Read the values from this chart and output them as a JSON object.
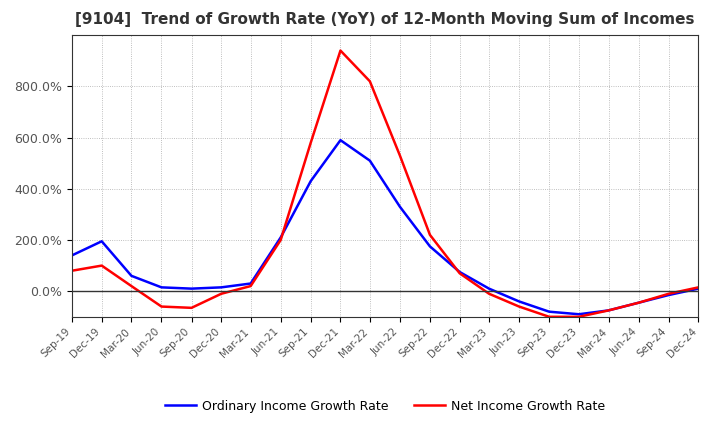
{
  "title": "[9104]  Trend of Growth Rate (YoY) of 12-Month Moving Sum of Incomes",
  "title_fontsize": 11,
  "background_color": "#ffffff",
  "grid_color": "#aaaaaa",
  "ylim": [
    -100,
    1000
  ],
  "yticks": [
    0,
    200,
    400,
    600,
    800
  ],
  "ytick_labels": [
    "0.0%",
    "200.0%",
    "400.0%",
    "600.0%",
    "800.0%"
  ],
  "legend_labels": [
    "Ordinary Income Growth Rate",
    "Net Income Growth Rate"
  ],
  "legend_colors": [
    "#0000ff",
    "#ff0000"
  ],
  "dates": [
    "Sep-19",
    "Dec-19",
    "Mar-20",
    "Jun-20",
    "Sep-20",
    "Dec-20",
    "Mar-21",
    "Jun-21",
    "Sep-21",
    "Dec-21",
    "Mar-22",
    "Jun-22",
    "Sep-22",
    "Dec-22",
    "Mar-23",
    "Jun-23",
    "Sep-23",
    "Dec-23",
    "Mar-24",
    "Jun-24",
    "Sep-24",
    "Dec-24"
  ],
  "ordinary_income": [
    140,
    195,
    60,
    15,
    10,
    15,
    30,
    210,
    430,
    590,
    510,
    330,
    175,
    75,
    10,
    -40,
    -80,
    -90,
    -75,
    -45,
    -15,
    10
  ],
  "net_income": [
    80,
    100,
    20,
    -60,
    -65,
    -10,
    20,
    200,
    580,
    940,
    820,
    530,
    220,
    70,
    -10,
    -60,
    -100,
    -100,
    -75,
    -45,
    -10,
    15
  ]
}
